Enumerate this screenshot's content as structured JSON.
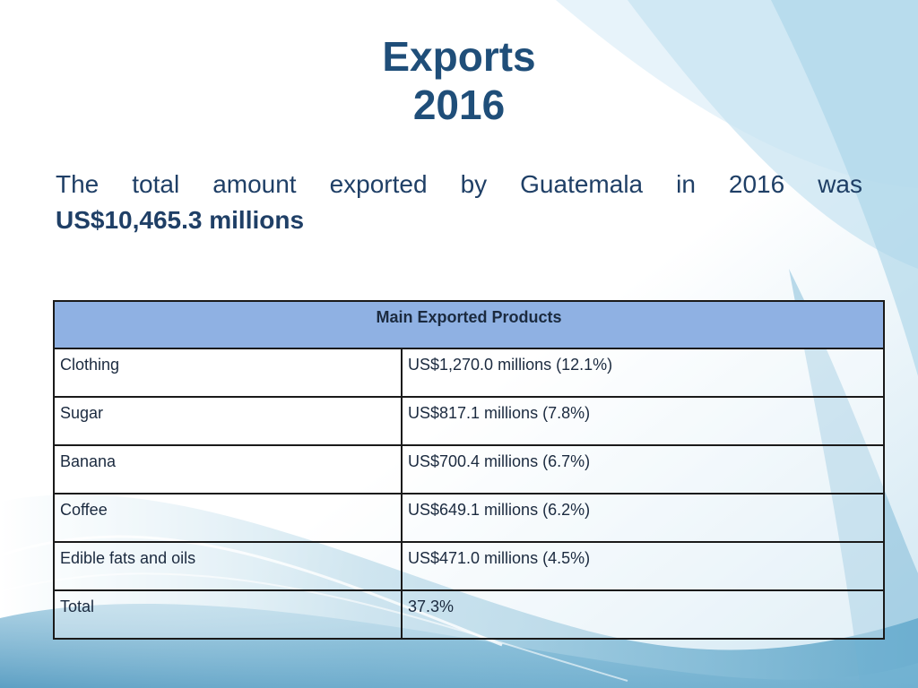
{
  "slide": {
    "title_line1": "Exports",
    "title_line2": "2016",
    "intro_words": [
      "The",
      "total",
      "amount",
      "exported",
      "by",
      "Guatemala",
      "in",
      "2016",
      "was"
    ],
    "intro_amount": "US$10,465.3 millions"
  },
  "table": {
    "header": "Main Exported Products",
    "rows": [
      {
        "product": "Clothing",
        "value": "US$1,270.0 millions (12.1%)"
      },
      {
        "product": "Sugar",
        "value": "US$817.1 millions (7.8%)"
      },
      {
        "product": "Banana",
        "value": "US$700.4 millions  (6.7%)"
      },
      {
        "product": "Coffee",
        "value": "US$649.1 millions  (6.2%)"
      },
      {
        "product": "Edible fats and oils",
        "value": "US$471.0 millions  (4.5%)"
      },
      {
        "product": "Total",
        "value": "37.3%"
      }
    ]
  },
  "colors": {
    "title": "#1f4e79",
    "table_header_bg": "#8fb1e3",
    "background_accent": "#6aa9c9"
  }
}
